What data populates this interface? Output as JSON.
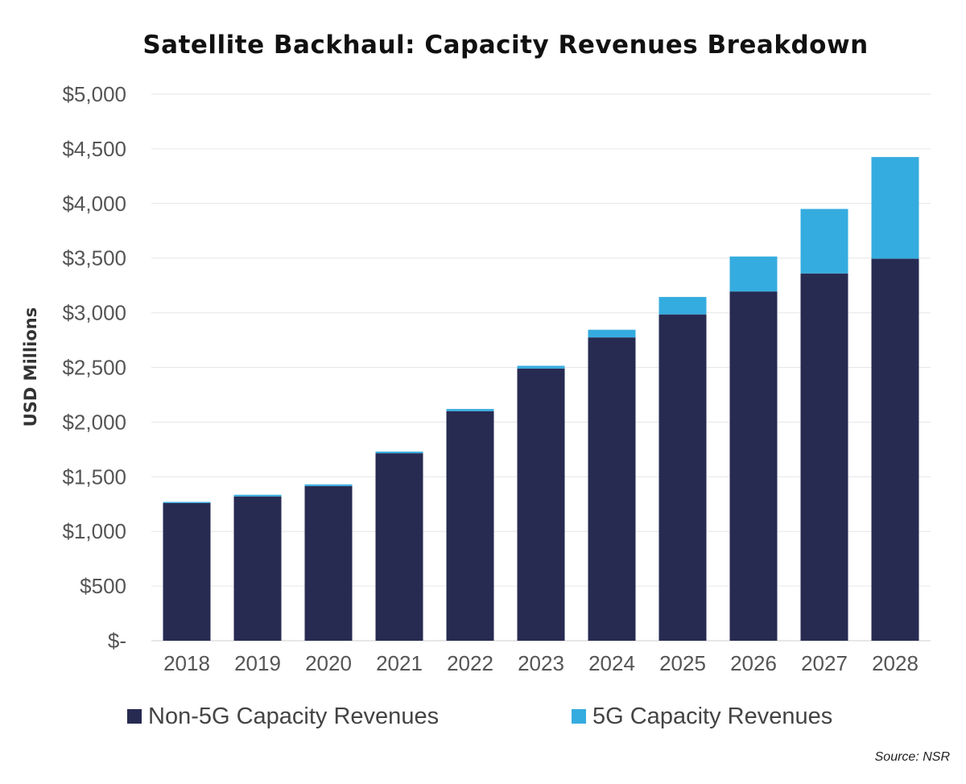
{
  "chart_data": {
    "type": "bar",
    "stacked": true,
    "title": "Satellite Backhaul: Capacity Revenues Breakdown",
    "xlabel": "",
    "ylabel": "USD Millions",
    "ylim": [
      0,
      5000
    ],
    "yticks": [
      0,
      500,
      1000,
      1500,
      2000,
      2500,
      3000,
      3500,
      4000,
      4500,
      5000
    ],
    "ytick_labels": [
      "$-",
      "$500",
      "$1,000",
      "$1,500",
      "$2,000",
      "$2,500",
      "$3,000",
      "$3,500",
      "$4,000",
      "$4,500",
      "$5,000"
    ],
    "grid": true,
    "legend_position": "bottom",
    "categories": [
      "2018",
      "2019",
      "2020",
      "2021",
      "2022",
      "2023",
      "2024",
      "2025",
      "2026",
      "2027",
      "2028"
    ],
    "series": [
      {
        "name": "Non-5G Capacity Revenues",
        "color": "#272b52",
        "values": [
          1260,
          1320,
          1415,
          1715,
          2100,
          2490,
          2775,
          2985,
          3195,
          3360,
          3495
        ]
      },
      {
        "name": "5G Capacity Revenues",
        "color": "#35acdf",
        "values": [
          10,
          15,
          15,
          15,
          20,
          25,
          70,
          160,
          320,
          590,
          930
        ]
      }
    ],
    "source": "Source: NSR"
  }
}
